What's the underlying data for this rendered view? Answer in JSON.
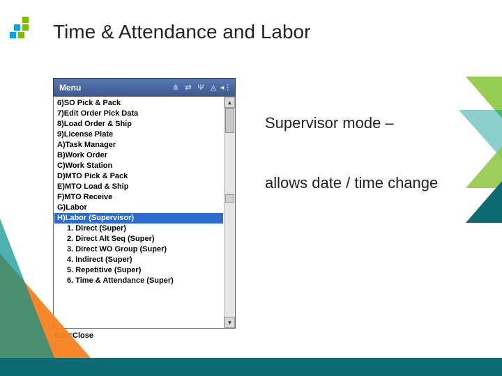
{
  "title": "Time & Attendance and Labor",
  "window": {
    "titlebar_label": "Menu",
    "footer": "Esc=Close",
    "icons": [
      "status-icon-1",
      "status-icon-2",
      "status-icon-3",
      "status-icon-4",
      "status-icon-5"
    ],
    "items": [
      {
        "label": "6)SO Pick & Pack",
        "selected": false,
        "sub": false
      },
      {
        "label": "7)Edit Order Pick Data",
        "selected": false,
        "sub": false
      },
      {
        "label": "8)Load Order & Ship",
        "selected": false,
        "sub": false
      },
      {
        "label": "9)License Plate",
        "selected": false,
        "sub": false
      },
      {
        "label": "A)Task Manager",
        "selected": false,
        "sub": false
      },
      {
        "label": "B)Work Order",
        "selected": false,
        "sub": false
      },
      {
        "label": "C)Work Station",
        "selected": false,
        "sub": false
      },
      {
        "label": "D)MTO Pick & Pack",
        "selected": false,
        "sub": false
      },
      {
        "label": "E)MTO Load & Ship",
        "selected": false,
        "sub": false
      },
      {
        "label": "F)MTO Receive",
        "selected": false,
        "sub": false
      },
      {
        "label": "G)Labor",
        "selected": false,
        "sub": false
      },
      {
        "label": "H)Labor (Supervisor)",
        "selected": true,
        "sub": false
      },
      {
        "label": "1. Direct (Super)",
        "selected": false,
        "sub": true
      },
      {
        "label": "2. Direct Alt Seq (Super)",
        "selected": false,
        "sub": true
      },
      {
        "label": "3. Direct WO Group (Super)",
        "selected": false,
        "sub": true
      },
      {
        "label": "4. Indirect (Super)",
        "selected": false,
        "sub": true
      },
      {
        "label": "5. Repetitive (Super)",
        "selected": false,
        "sub": true
      },
      {
        "label": "6. Time & Attendance (Super)",
        "selected": false,
        "sub": true
      }
    ]
  },
  "annotation": {
    "line1": "Supervisor mode –",
    "line2": "allows date / time change"
  },
  "colors": {
    "titlebar_top": "#5a78b0",
    "titlebar_bottom": "#3b5a94",
    "selection": "#2b6cd1",
    "footer_bar": "#0f6b73",
    "orange": "#f58220",
    "green": "#8cc63f",
    "teal": "#0f9490"
  }
}
